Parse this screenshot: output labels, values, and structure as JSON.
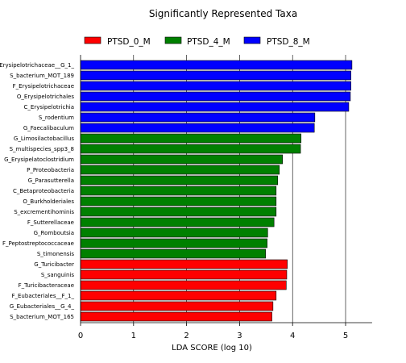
{
  "chart_data": {
    "type": "bar",
    "orientation": "horizontal",
    "title": "Significantly Represented Taxa",
    "xlabel": "LDA SCORE (log 10)",
    "ylabel": "",
    "xlim": [
      0,
      5.5
    ],
    "xticks": [
      "0",
      "1",
      "2",
      "3",
      "4",
      "5"
    ],
    "grid": "vertical",
    "legend_position": "top",
    "legend": [
      {
        "name": "PTSD_0_M",
        "color": "#ff0000"
      },
      {
        "name": "PTSD_4_M",
        "color": "#008000"
      },
      {
        "name": "PTSD_8_M",
        "color": "#0000ff"
      }
    ],
    "bars": [
      {
        "label": "Erysipelotrichaceae__G_1_",
        "value": 5.12,
        "group": "PTSD_8_M"
      },
      {
        "label": "S_bacterium_MOT_189",
        "value": 5.1,
        "group": "PTSD_8_M"
      },
      {
        "label": "F_Erysipelotrichaceae",
        "value": 5.1,
        "group": "PTSD_8_M"
      },
      {
        "label": "O_Erysipelotrichales",
        "value": 5.09,
        "group": "PTSD_8_M"
      },
      {
        "label": "C_Erysipelotrichia",
        "value": 5.06,
        "group": "PTSD_8_M"
      },
      {
        "label": "S_rodentium",
        "value": 4.42,
        "group": "PTSD_8_M"
      },
      {
        "label": "G_Faecalibaculum",
        "value": 4.41,
        "group": "PTSD_8_M"
      },
      {
        "label": "G_Limosilactobacillus",
        "value": 4.16,
        "group": "PTSD_4_M"
      },
      {
        "label": "S_multispecies_spp3_8",
        "value": 4.15,
        "group": "PTSD_4_M"
      },
      {
        "label": "G_Erysipelatoclostridium",
        "value": 3.81,
        "group": "PTSD_4_M"
      },
      {
        "label": "P_Proteobacteria",
        "value": 3.75,
        "group": "PTSD_4_M"
      },
      {
        "label": "G_Parasutterella",
        "value": 3.72,
        "group": "PTSD_4_M"
      },
      {
        "label": "C_Betaproteobacteria",
        "value": 3.69,
        "group": "PTSD_4_M"
      },
      {
        "label": "O_Burkholderiales",
        "value": 3.69,
        "group": "PTSD_4_M"
      },
      {
        "label": "S_excrementihominis",
        "value": 3.69,
        "group": "PTSD_4_M"
      },
      {
        "label": "F_Sutterellaceae",
        "value": 3.65,
        "group": "PTSD_4_M"
      },
      {
        "label": "G_Romboutsia",
        "value": 3.53,
        "group": "PTSD_4_M"
      },
      {
        "label": "F_Peptostreptococcaceae",
        "value": 3.52,
        "group": "PTSD_4_M"
      },
      {
        "label": "S_timonensis",
        "value": 3.49,
        "group": "PTSD_4_M"
      },
      {
        "label": "G_Turicibacter",
        "value": 3.9,
        "group": "PTSD_0_M"
      },
      {
        "label": "S_sanguinis",
        "value": 3.89,
        "group": "PTSD_0_M"
      },
      {
        "label": "F_Turicibacteraceae",
        "value": 3.88,
        "group": "PTSD_0_M"
      },
      {
        "label": "F_Eubacteriales__F_1_",
        "value": 3.69,
        "group": "PTSD_0_M"
      },
      {
        "label": "G_Eubacteriales__G_4_",
        "value": 3.63,
        "group": "PTSD_0_M"
      },
      {
        "label": "S_bacterium_MOT_165",
        "value": 3.61,
        "group": "PTSD_0_M"
      }
    ]
  }
}
